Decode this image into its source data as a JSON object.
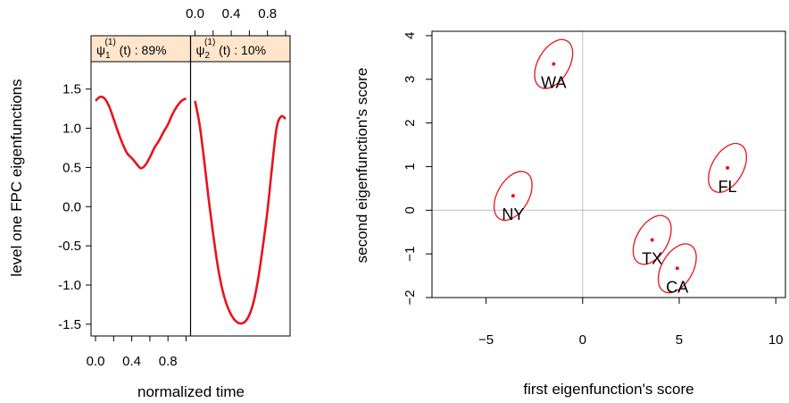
{
  "chart_data": [
    {
      "type": "line",
      "xlabel": "normalized time",
      "ylabel": "level one FPC eigenfunctions",
      "xlim": [
        0,
        1
      ],
      "ylim": [
        -1.65,
        1.85
      ],
      "x_ticks": [
        "0.0",
        "0.4",
        "0.8"
      ],
      "x_tick_values": [
        0,
        0.4,
        0.8
      ],
      "y_ticks": [
        "-1.5",
        "-1.0",
        "-0.5",
        "0.0",
        "0.5",
        "1.0",
        "1.5"
      ],
      "y_tick_values": [
        -1.5,
        -1.0,
        -0.5,
        0,
        0.5,
        1.0,
        1.5
      ],
      "line_color": "#e8141c",
      "strip_color": "#ffe5cc",
      "panels": [
        {
          "strip_psi": "ψ",
          "strip_sub": "1",
          "strip_sup": "(1)",
          "strip_rest": " (t) : 89%",
          "x": [
            0.0,
            0.05,
            0.1,
            0.15,
            0.2,
            0.25,
            0.3,
            0.35,
            0.4,
            0.45,
            0.5,
            0.55,
            0.6,
            0.65,
            0.7,
            0.75,
            0.8,
            0.85,
            0.9,
            0.95,
            1.0
          ],
          "y": [
            1.35,
            1.4,
            1.38,
            1.28,
            1.12,
            0.95,
            0.8,
            0.68,
            0.62,
            0.55,
            0.49,
            0.53,
            0.63,
            0.75,
            0.84,
            0.95,
            1.05,
            1.18,
            1.28,
            1.35,
            1.38
          ]
        },
        {
          "strip_psi": "ψ",
          "strip_sub": "2",
          "strip_sup": "(1)",
          "strip_rest": " (t) : 10%",
          "x": [
            0.0,
            0.05,
            0.1,
            0.15,
            0.2,
            0.25,
            0.3,
            0.35,
            0.4,
            0.45,
            0.5,
            0.55,
            0.6,
            0.65,
            0.7,
            0.75,
            0.8,
            0.85,
            0.9,
            0.95,
            1.0
          ],
          "y": [
            1.35,
            1.05,
            0.6,
            0.1,
            -0.35,
            -0.75,
            -1.05,
            -1.25,
            -1.38,
            -1.46,
            -1.49,
            -1.47,
            -1.38,
            -1.2,
            -0.9,
            -0.5,
            -0.05,
            0.5,
            1.0,
            1.15,
            1.12
          ]
        }
      ]
    },
    {
      "type": "scatter",
      "xlabel": "first eigenfunction's score",
      "ylabel": "second eigenfunction's score",
      "xlim": [
        -7.8,
        10.5
      ],
      "ylim": [
        -2.0,
        4.1
      ],
      "x_ticks": [
        "−5",
        "0",
        "5",
        "10"
      ],
      "x_tick_values": [
        -5,
        0,
        5,
        10
      ],
      "y_ticks": [
        "−2",
        "−1",
        "0",
        "1",
        "2",
        "3",
        "4"
      ],
      "y_tick_values": [
        -2,
        -1,
        0,
        1,
        2,
        3,
        4
      ],
      "ref_lines": {
        "x": 0,
        "y": 0,
        "color": "#bebebe"
      },
      "point_color": "#e8141c",
      "ellipse": {
        "a": 1.0,
        "b": 0.6,
        "angle_deg": 60
      },
      "points": [
        {
          "label": "WA",
          "x": -1.5,
          "y": 3.35
        },
        {
          "label": "FL",
          "x": 7.5,
          "y": 0.97
        },
        {
          "label": "NY",
          "x": -3.6,
          "y": 0.33
        },
        {
          "label": "TX",
          "x": 3.6,
          "y": -0.68
        },
        {
          "label": "CA",
          "x": 4.9,
          "y": -1.33
        }
      ]
    }
  ]
}
